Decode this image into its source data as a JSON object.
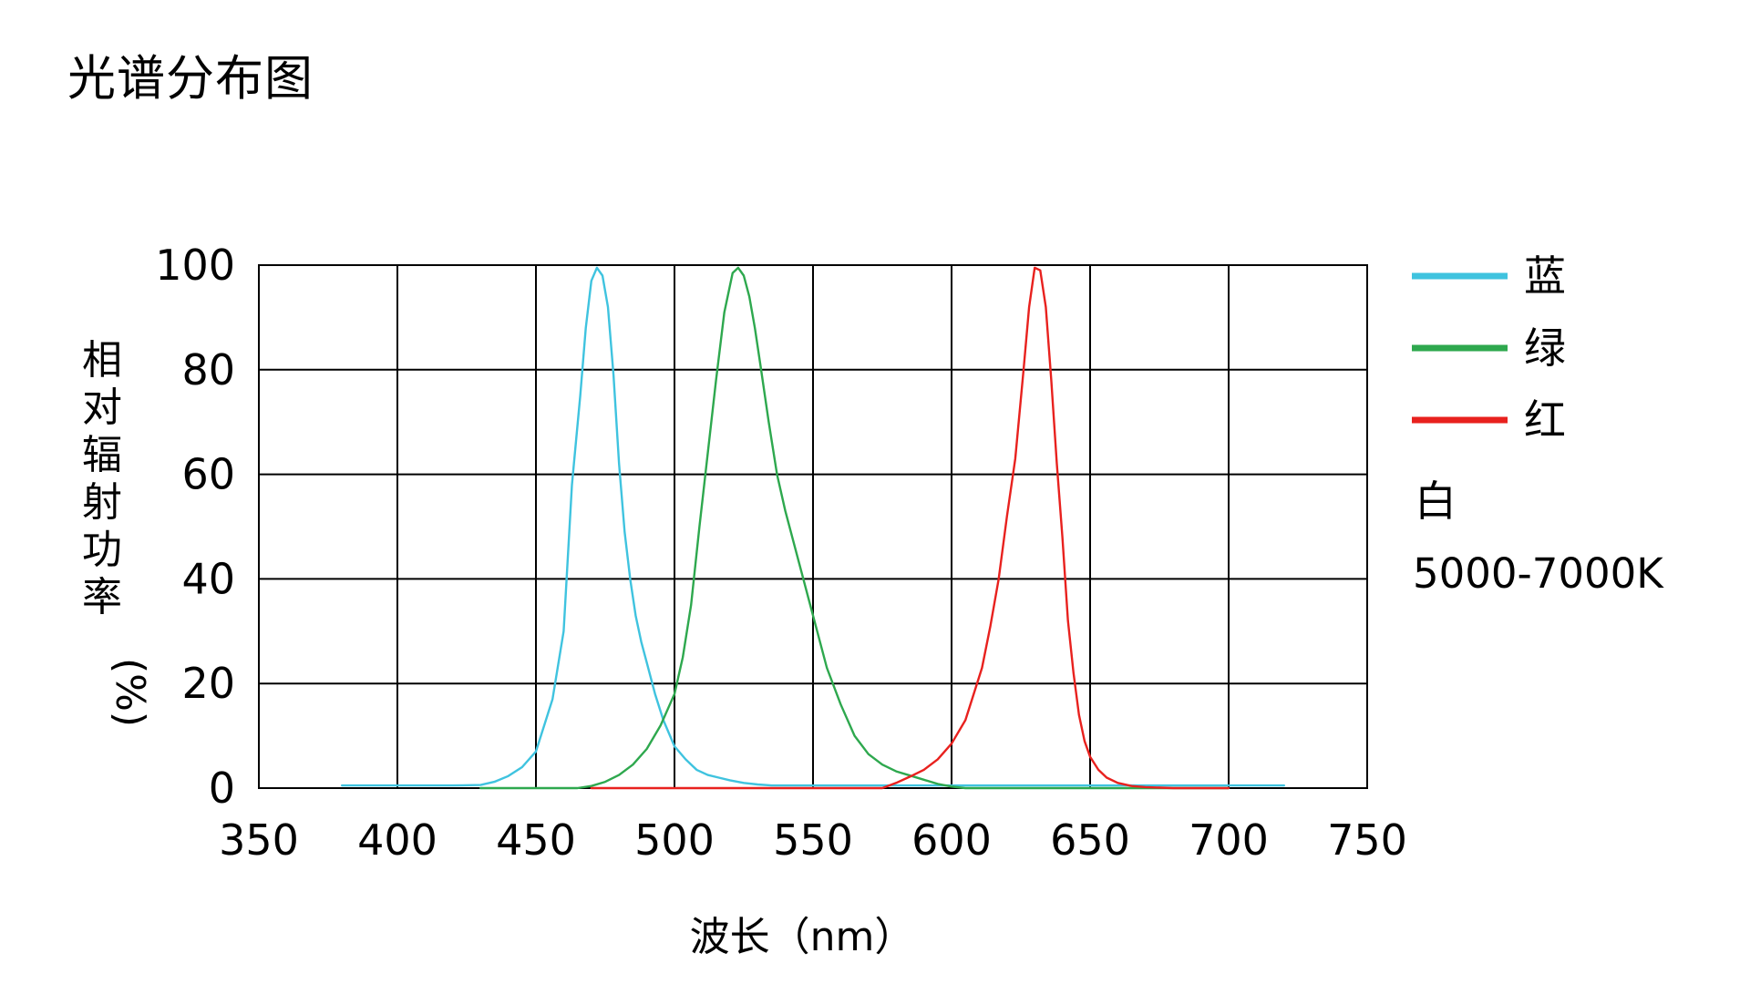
{
  "title": "光谱分布图",
  "chart_data": {
    "type": "line",
    "xlabel": "波长（nm）",
    "ylabel": "相对辐射功率（%）",
    "xlim": [
      350,
      750
    ],
    "ylim": [
      0,
      100
    ],
    "xticks": [
      350,
      400,
      450,
      500,
      550,
      600,
      650,
      700,
      750
    ],
    "yticks": [
      0,
      20,
      40,
      60,
      80,
      100
    ],
    "grid": true,
    "legend_position": "right",
    "series": [
      {
        "name": "蓝",
        "color": "#3fc3df",
        "x": [
          380,
          400,
          420,
          430,
          435,
          440,
          445,
          450,
          453,
          456,
          460,
          463,
          466,
          468,
          470,
          472,
          474,
          476,
          478,
          480,
          482,
          484,
          486,
          488,
          490,
          493,
          496,
          500,
          504,
          508,
          512,
          516,
          520,
          525,
          530,
          535,
          540,
          545,
          550,
          560,
          580,
          600,
          620,
          640,
          660,
          680,
          700,
          720
        ],
        "y": [
          0.5,
          0.5,
          0.5,
          0.6,
          1.2,
          2.3,
          4.0,
          7.0,
          12,
          17,
          30,
          58,
          75,
          88,
          97,
          99.5,
          98,
          92,
          79,
          62,
          49,
          40,
          33,
          28,
          24,
          18,
          13,
          8,
          5.5,
          3.5,
          2.5,
          2.0,
          1.5,
          1.0,
          0.7,
          0.5,
          0.5,
          0.5,
          0.5,
          0.5,
          0.5,
          0.5,
          0.5,
          0.5,
          0.5,
          0.5,
          0.5,
          0.5
        ]
      },
      {
        "name": "绿",
        "color": "#2ea84e",
        "x": [
          430,
          450,
          465,
          470,
          475,
          480,
          485,
          490,
          495,
          500,
          503,
          506,
          509,
          512,
          515,
          518,
          521,
          523,
          525,
          527,
          529,
          531,
          534,
          537,
          540,
          545,
          550,
          555,
          560,
          565,
          570,
          575,
          580,
          585,
          590,
          595,
          600,
          605,
          610,
          620,
          640,
          660,
          680,
          700
        ],
        "y": [
          0,
          0,
          0,
          0.4,
          1.2,
          2.5,
          4.5,
          7.5,
          12,
          18,
          25,
          35,
          50,
          64,
          78,
          91,
          98.5,
          99.5,
          98,
          94,
          88,
          81,
          70,
          60,
          53,
          43,
          33,
          23,
          16,
          10,
          6.5,
          4.5,
          3.2,
          2.4,
          1.6,
          0.8,
          0.3,
          0,
          0,
          0,
          0,
          0,
          0,
          0
        ]
      },
      {
        "name": "红",
        "color": "#e8211e",
        "x": [
          470,
          500,
          550,
          575,
          580,
          585,
          590,
          595,
          600,
          605,
          608,
          611,
          614,
          617,
          620,
          623,
          626,
          628,
          630,
          632,
          634,
          636,
          638,
          640,
          642,
          644,
          646,
          648,
          650,
          653,
          656,
          660,
          665,
          670,
          680,
          700
        ],
        "y": [
          0,
          0,
          0,
          0,
          1.0,
          2.2,
          3.5,
          5.5,
          8.5,
          13,
          18,
          23,
          31,
          40,
          52,
          63,
          80,
          92,
          99.5,
          99,
          92,
          78,
          62,
          48,
          32,
          22,
          14,
          9,
          6,
          3.5,
          2,
          1,
          0.4,
          0.2,
          0,
          0
        ]
      }
    ],
    "annotations": [
      "白",
      "5000-7000K"
    ]
  }
}
